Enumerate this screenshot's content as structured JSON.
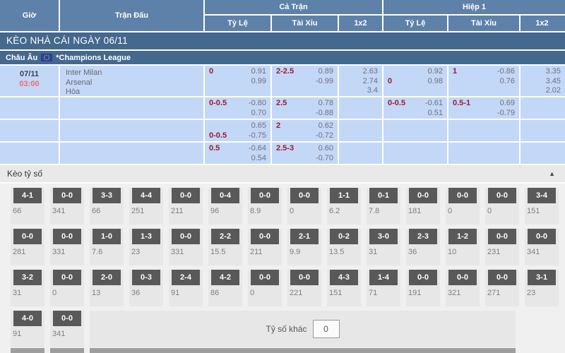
{
  "table": {
    "headers": {
      "time": "Giờ",
      "match": "Trận Đấu",
      "full_match": "Cả Trận",
      "first_half": "Hiệp 1",
      "handicap": "Tỷ Lệ",
      "over_under": "Tài Xỉu",
      "one_x_two": "1x2"
    },
    "banner": "KÈO NHÀ CÁI NGÀY 06/11",
    "league": {
      "region": "Châu Âu",
      "flag": "eu-flag",
      "name": "*Champions League"
    },
    "match": {
      "date": "07/11",
      "time": "03:00",
      "teams": [
        "Inter Milan",
        "Arsenal",
        "Hòa"
      ]
    },
    "odds_rows": [
      {
        "ft_handicap": {
          "l1": "0",
          "v1": "0.91",
          "l2": "",
          "v2": "0.99"
        },
        "ft_ou": {
          "l1": "2-2.5",
          "v1": "0.89",
          "l2": "",
          "v2": "-0.99"
        },
        "ft_1x2": [
          "2.63",
          "2.74",
          "3.4"
        ],
        "h1_handicap": {
          "l1": "",
          "v1": "0.92",
          "l2": "0",
          "v2": "0.98"
        },
        "h1_ou": {
          "l1": "1",
          "v1": "-0.86",
          "l2": "",
          "v2": "0.76"
        },
        "h1_1x2": [
          "3.35",
          "3.45",
          "2.02"
        ]
      },
      {
        "ft_handicap": {
          "l1": "0-0.5",
          "v1": "-0.80",
          "l2": "",
          "v2": "0.70"
        },
        "ft_ou": {
          "l1": "2.5",
          "v1": "0.78",
          "l2": "",
          "v2": "-0.88"
        },
        "ft_1x2": [],
        "h1_handicap": {
          "l1": "0-0.5",
          "v1": "-0.61",
          "l2": "",
          "v2": "0.51"
        },
        "h1_ou": {
          "l1": "0.5-1",
          "v1": "0.69",
          "l2": "",
          "v2": "-0.79"
        },
        "h1_1x2": []
      },
      {
        "ft_handicap": {
          "l1": "",
          "v1": "0.65",
          "l2": "0-0.5",
          "v2": "-0.75"
        },
        "ft_ou": {
          "l1": "2",
          "v1": "0.62",
          "l2": "",
          "v2": "-0.72"
        },
        "ft_1x2": [],
        "h1_handicap": null,
        "h1_ou": null,
        "h1_1x2": []
      },
      {
        "ft_handicap": {
          "l1": "0.5",
          "v1": "-0.64",
          "l2": "",
          "v2": "0.54"
        },
        "ft_ou": {
          "l1": "2.5-3",
          "v1": "0.60",
          "l2": "",
          "v2": "-0.70"
        },
        "ft_1x2": [],
        "h1_handicap": null,
        "h1_ou": null,
        "h1_1x2": []
      }
    ]
  },
  "score_section": {
    "title": "Kèo tỷ số",
    "collapse_icon": "chevron-up",
    "other_score_label": "Tỷ số khác",
    "other_score_value": "0",
    "rows": [
      [
        {
          "score": "4-1",
          "odds": "66"
        },
        {
          "score": "0-0",
          "odds": "341"
        },
        {
          "score": "3-3",
          "odds": "66"
        },
        {
          "score": "4-4",
          "odds": "251"
        },
        {
          "score": "0-0",
          "odds": "211"
        },
        {
          "score": "0-4",
          "odds": "96"
        },
        {
          "score": "0-0",
          "odds": "8.9"
        },
        {
          "score": "0-0",
          "odds": "0"
        },
        {
          "score": "1-1",
          "odds": "6.2"
        },
        {
          "score": "0-1",
          "odds": "7.8"
        },
        {
          "score": "0-0",
          "odds": "181"
        },
        {
          "score": "0-0",
          "odds": "0"
        },
        {
          "score": "0-0",
          "odds": "0"
        },
        {
          "score": "3-4",
          "odds": "151"
        }
      ],
      [
        {
          "score": "0-0",
          "odds": "281"
        },
        {
          "score": "0-0",
          "odds": "331"
        },
        {
          "score": "1-0",
          "odds": "7.6"
        },
        {
          "score": "1-3",
          "odds": "23"
        },
        {
          "score": "0-0",
          "odds": "331"
        },
        {
          "score": "2-2",
          "odds": "15.5"
        },
        {
          "score": "0-0",
          "odds": "211"
        },
        {
          "score": "2-1",
          "odds": "9.9"
        },
        {
          "score": "0-2",
          "odds": "13.5"
        },
        {
          "score": "3-0",
          "odds": "31"
        },
        {
          "score": "2-3",
          "odds": "36"
        },
        {
          "score": "1-2",
          "odds": "10"
        },
        {
          "score": "0-0",
          "odds": "231"
        },
        {
          "score": "0-0",
          "odds": "341"
        }
      ],
      [
        {
          "score": "3-2",
          "odds": "31"
        },
        {
          "score": "0-0",
          "odds": "0"
        },
        {
          "score": "2-0",
          "odds": "13"
        },
        {
          "score": "0-3",
          "odds": "36"
        },
        {
          "score": "2-4",
          "odds": "91"
        },
        {
          "score": "4-2",
          "odds": "86"
        },
        {
          "score": "0-0",
          "odds": "0"
        },
        {
          "score": "0-0",
          "odds": "221"
        },
        {
          "score": "4-3",
          "odds": "151"
        },
        {
          "score": "1-4",
          "odds": "71"
        },
        {
          "score": "0-0",
          "odds": "191"
        },
        {
          "score": "0-0",
          "odds": "321"
        },
        {
          "score": "0-0",
          "odds": "271"
        },
        {
          "score": "3-1",
          "odds": "23"
        }
      ],
      [
        {
          "score": "4-0",
          "odds": "91"
        },
        {
          "score": "0-0",
          "odds": "341"
        }
      ]
    ]
  },
  "colors": {
    "header_bg": "#5d81a9",
    "banner_bg": "#45688d",
    "row_bg": "#c3d7f7",
    "handicap_label": "#9b1c30",
    "odds_value": "#6f717c",
    "time_red": "#f4696d",
    "score_chip_bg": "#595959",
    "section_bg": "#f0f0f0"
  }
}
